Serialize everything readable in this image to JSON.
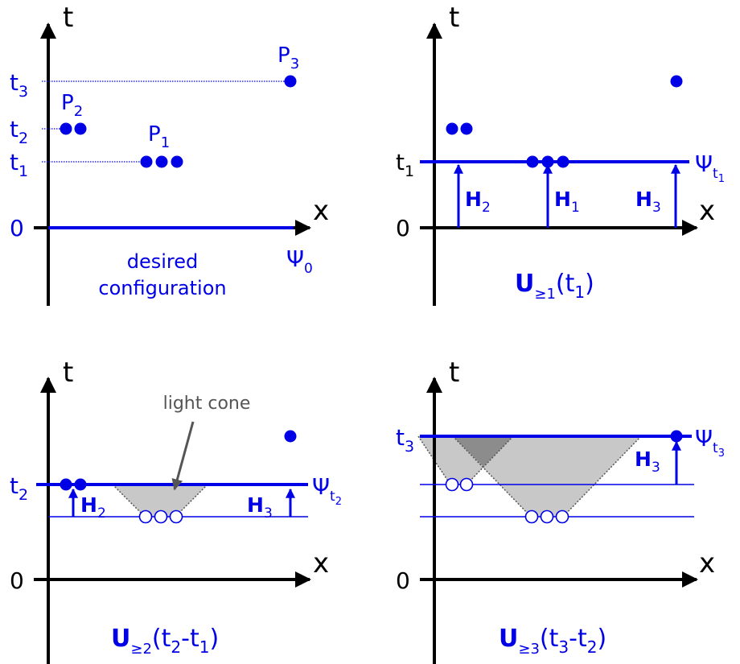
{
  "colors": {
    "blue": "#0000e6",
    "axis": "#000000",
    "cone": "#c8c8c8",
    "cone_overlap": "#8c8c8c",
    "annotation": "#555555"
  },
  "panels": [
    {
      "t_axis": "t",
      "x_axis": "x",
      "ticks": [
        "t",
        "3",
        "t",
        "2",
        "t",
        "1",
        "0"
      ],
      "points": [
        "P",
        "3",
        "P",
        "2",
        "P",
        "1"
      ],
      "psi": [
        "Ψ",
        "0"
      ],
      "caption": [
        "desired",
        "configuration"
      ]
    },
    {
      "t_axis": "t",
      "x_axis": "x",
      "ticks": [
        "t",
        "1",
        "0"
      ],
      "psi": [
        "Ψ",
        "t",
        "1"
      ],
      "h": [
        [
          "H",
          "2"
        ],
        [
          "H",
          "1"
        ],
        [
          "H",
          "3"
        ]
      ],
      "caption": [
        "U",
        "≥1",
        "(t",
        "1",
        ")"
      ]
    },
    {
      "t_axis": "t",
      "x_axis": "x",
      "ticks": [
        "t",
        "2",
        "0"
      ],
      "psi": [
        "Ψ",
        "t",
        "2"
      ],
      "h": [
        [
          "H",
          "2"
        ],
        [
          "H",
          "3"
        ]
      ],
      "annotation": "light cone",
      "caption": [
        "U",
        "≥2",
        "(t",
        "2",
        "-t",
        "1",
        ")"
      ]
    },
    {
      "t_axis": "t",
      "x_axis": "x",
      "ticks": [
        "t",
        "3",
        "0"
      ],
      "psi": [
        "Ψ",
        "t",
        "3"
      ],
      "h": [
        [
          "H",
          "3"
        ]
      ],
      "caption": [
        "U",
        "≥3",
        "(t",
        "3",
        "-t",
        "2",
        ")"
      ]
    }
  ]
}
